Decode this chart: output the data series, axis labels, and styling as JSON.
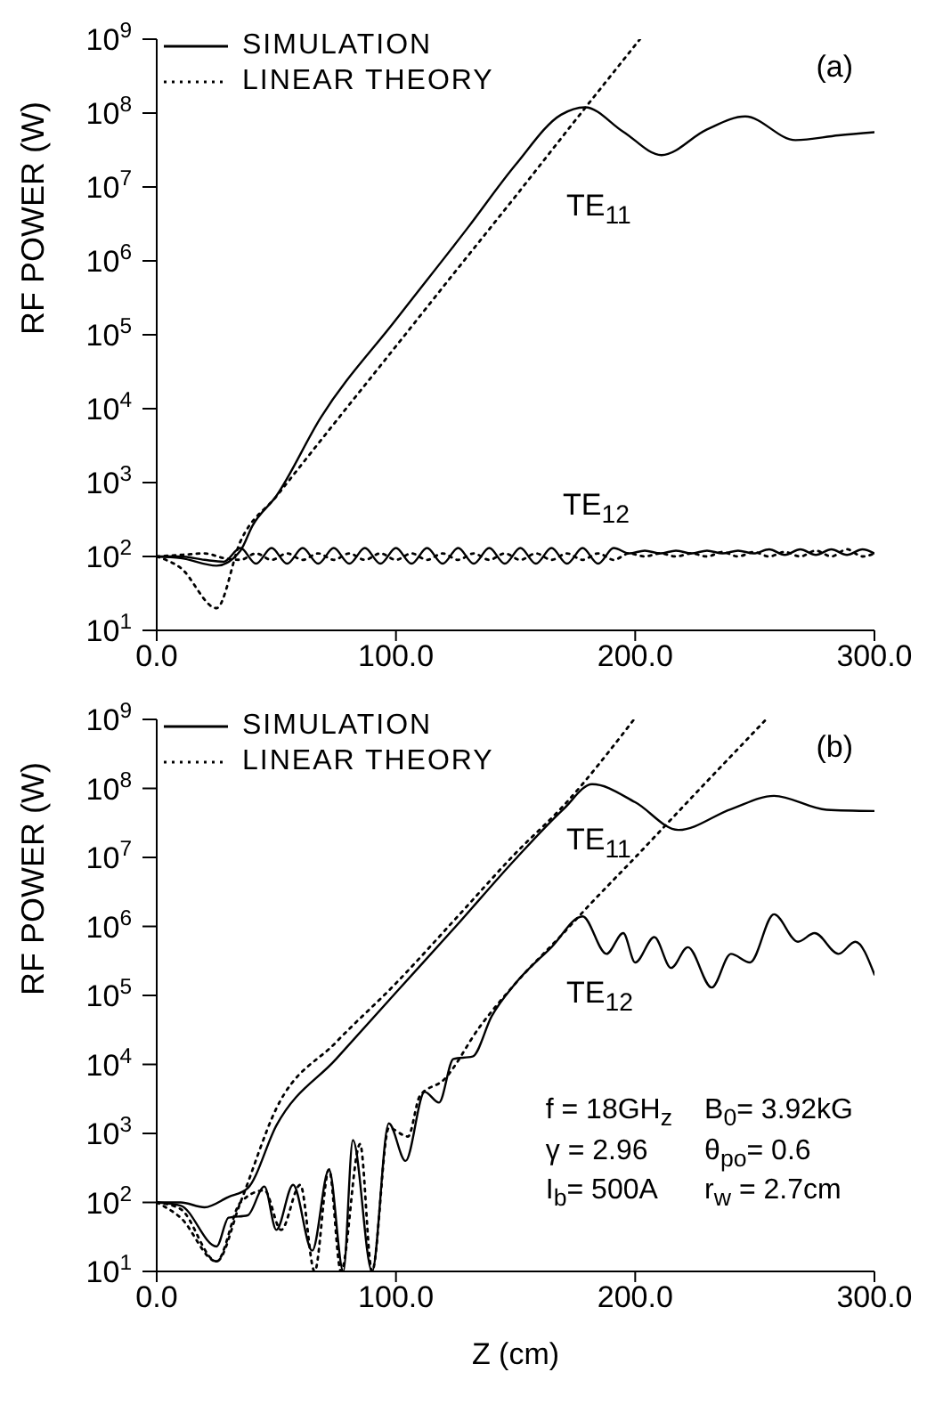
{
  "chart_data": [
    {
      "type": "line",
      "ylabel": "RF POWER (W)",
      "log": "y",
      "xlim": [
        0,
        300
      ],
      "ylim": [
        10,
        1000000000
      ],
      "marker": "none",
      "grid": false,
      "legend": "top left",
      "xticks": [
        {
          "value": 0,
          "label": "0.0"
        },
        {
          "value": 100,
          "label": "100.0"
        },
        {
          "value": 200,
          "label": "200.0"
        },
        {
          "value": 300,
          "label": "300.0"
        }
      ],
      "yticks": [
        {
          "value": 10,
          "label": "10$^{1}$"
        },
        {
          "value": 100,
          "label": "10$^{2}$"
        },
        {
          "value": 1000,
          "label": "10$^{3}$"
        },
        {
          "value": 10000,
          "label": "10$^{4}$"
        },
        {
          "value": 100000,
          "label": "10$^{5}$"
        },
        {
          "value": 1000000,
          "label": "10$^{6}$"
        },
        {
          "value": 10000000,
          "label": "10$^{7}$"
        },
        {
          "value": 100000000,
          "label": "10$^{8}$"
        },
        {
          "value": 1000000000,
          "label": "10$^{9}$"
        }
      ],
      "annotations": [
        "(a)",
        "TE$_{11}$",
        "TE$_{12}$"
      ],
      "series": [
        {
          "name": "SIMULATION",
          "color": "#000000",
          "line_style": "solid",
          "x": [
            0,
            10,
            25,
            35,
            40,
            50,
            68.6,
            100,
            130,
            150,
            169,
            179,
            195,
            211,
            230,
            246,
            267,
            285,
            300
          ],
          "values": [
            100,
            95,
            75,
            120,
            260,
            660,
            7600,
            160000,
            2800000,
            20000000,
            95000000,
            120000000,
            56000000,
            27000000,
            60000000,
            90000000,
            43000000,
            50000000,
            55000000
          ]
        },
        {
          "name": "LINEAR THEORY",
          "color": "#000000",
          "line_style": "dotted",
          "x": [
            0,
            10,
            25,
            35,
            50,
            75,
            100,
            125,
            150,
            175,
            202
          ],
          "values": [
            100,
            70,
            20,
            160,
            650,
            6800,
            70000,
            730000,
            7500000,
            80000000,
            1000000000
          ]
        },
        {
          "color": "#000000",
          "line_style": "solid",
          "x": [
            0,
            10,
            20,
            28,
            35,
            41.5,
            48,
            54.5,
            61,
            67.5,
            74,
            80.5,
            87,
            93.5,
            100,
            106.5,
            113,
            119.5,
            126,
            132.5,
            139,
            145.5,
            152,
            158.5,
            165,
            171.5,
            178,
            184.5,
            191,
            197.5,
            204,
            210.5,
            217,
            223.5,
            230,
            236.5,
            243,
            249.5,
            256,
            262.5,
            269,
            275.5,
            282,
            288.5,
            295,
            300
          ],
          "values": [
            100,
            100,
            90,
            85,
            130,
            80,
            130,
            80,
            130,
            80,
            130,
            80,
            130,
            80,
            130,
            80,
            130,
            80,
            130,
            80,
            130,
            80,
            130,
            80,
            130,
            80,
            130,
            80,
            130,
            110,
            120,
            110,
            120,
            110,
            120,
            110,
            120,
            110,
            125,
            105,
            125,
            105,
            125,
            105,
            125,
            110
          ]
        },
        {
          "color": "#000000",
          "line_style": "dotted",
          "x": [
            0,
            10,
            20,
            28,
            35,
            41.5,
            48,
            54.5,
            61,
            67.5,
            74,
            80.5,
            87,
            93.5,
            100,
            106.5,
            113,
            119.5,
            126,
            132.5,
            139,
            145.5,
            152,
            158.5,
            165,
            171.5,
            178,
            184.5,
            191,
            197.5,
            204,
            210.5,
            217,
            223.5,
            230,
            236.5,
            243,
            249.5,
            256,
            262.5,
            269,
            275.5,
            282,
            288.5,
            295,
            300
          ],
          "values": [
            100,
            105,
            110,
            95,
            90,
            110,
            90,
            110,
            90,
            110,
            90,
            110,
            90,
            110,
            90,
            110,
            90,
            110,
            90,
            110,
            90,
            110,
            90,
            110,
            90,
            110,
            90,
            110,
            90,
            110,
            100,
            110,
            100,
            110,
            100,
            115,
            100,
            115,
            100,
            115,
            100,
            120,
            100,
            125,
            100,
            110
          ]
        }
      ]
    },
    {
      "type": "line",
      "xlabel": "Z (cm)",
      "ylabel": "RF POWER (W)",
      "log": "y",
      "xlim": [
        0,
        300
      ],
      "ylim": [
        10,
        1000000000
      ],
      "marker": "none",
      "grid": false,
      "legend": "top left",
      "xticks": [
        {
          "value": 0,
          "label": "0.0"
        },
        {
          "value": 100,
          "label": "100.0"
        },
        {
          "value": 200,
          "label": "200.0"
        },
        {
          "value": 300,
          "label": "300.0"
        }
      ],
      "yticks": [
        {
          "value": 10,
          "label": "10$^{1}$"
        },
        {
          "value": 100,
          "label": "10$^{2}$"
        },
        {
          "value": 1000,
          "label": "10$^{3}$"
        },
        {
          "value": 10000,
          "label": "10$^{4}$"
        },
        {
          "value": 100000,
          "label": "10$^{5}$"
        },
        {
          "value": 1000000,
          "label": "10$^{6}$"
        },
        {
          "value": 10000000,
          "label": "10$^{7}$"
        },
        {
          "value": 100000000,
          "label": "10$^{8}$"
        },
        {
          "value": 1000000000,
          "label": "10$^{9}$"
        }
      ],
      "annotations": [
        "(b)",
        "TE$_{11}$",
        "TE$_{12}$",
        "f = 18GH$_{z}$",
        "B$_{0}$= 3.92kG",
        "γ = 2.96",
        "θ$_{po}$= 0.6",
        "I$_{b}$= 500A",
        "r$_{w}$ = 2.7cm"
      ],
      "series": [
        {
          "name": "SIMULATION",
          "color": "#000000",
          "line_style": "solid",
          "x": [
            0,
            10,
            20,
            30,
            38,
            50,
            75,
            100,
            125,
            150,
            170,
            182,
            200,
            218,
            240,
            258,
            280,
            300
          ],
          "values": [
            100,
            100,
            85,
            120,
            160,
            1300,
            12000,
            110000,
            1000000,
            9500000,
            50000000,
            115000000,
            63000000,
            25000000,
            50000000,
            78000000,
            49000000,
            47000000
          ]
        },
        {
          "name": "LINEAR THEORY",
          "color": "#000000",
          "line_style": "dotted",
          "x": [
            0,
            10,
            25,
            35,
            50,
            75,
            100,
            125,
            150,
            170,
            199.5
          ],
          "values": [
            100,
            60,
            14,
            100,
            2300,
            21000,
            150000,
            1300000,
            11500000,
            56000000,
            1000000000
          ]
        },
        {
          "color": "#000000",
          "line_style": "solid",
          "x": [
            0,
            10,
            25,
            30,
            38,
            45,
            50,
            57,
            65,
            72,
            78,
            82,
            90,
            97,
            104,
            112,
            118,
            124,
            132,
            140,
            150,
            165,
            178,
            188,
            195,
            200,
            208,
            215,
            222,
            232,
            240,
            248,
            258,
            268,
            275,
            285,
            292,
            300
          ],
          "values": [
            100,
            90,
            23,
            60,
            65,
            170,
            40,
            180,
            20,
            300,
            10,
            800,
            10,
            1400,
            400,
            4000,
            2800,
            12000,
            13000,
            50000,
            150000,
            500000,
            1400000,
            400000,
            800000,
            300000,
            700000,
            250000,
            500000,
            130000,
            400000,
            300000,
            1500000,
            600000,
            800000,
            400000,
            600000,
            200000
          ]
        },
        {
          "color": "#000000",
          "line_style": "dotted",
          "x": [
            0,
            10,
            25,
            35,
            45,
            52,
            60,
            66,
            72,
            77,
            85,
            90,
            97,
            105,
            110,
            120,
            135,
            150,
            170,
            180,
            200,
            225,
            254.7
          ],
          "values": [
            100,
            80,
            14,
            100,
            150,
            40,
            180,
            10,
            300,
            10,
            700,
            10,
            1200,
            900,
            3500,
            6000,
            35000,
            150000,
            800000,
            1900000,
            10000000,
            83000000,
            1000000000
          ]
        }
      ]
    }
  ]
}
